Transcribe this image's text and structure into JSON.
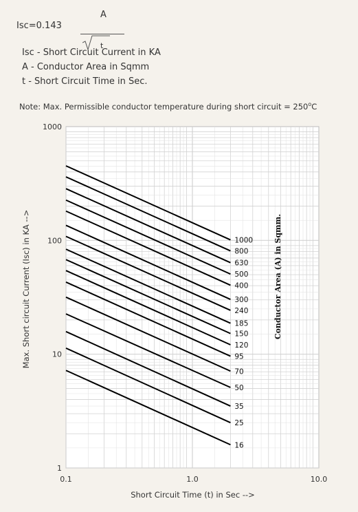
{
  "formula": {
    "lhs": "Isc=0.143",
    "numerator": "A",
    "denominator": "t"
  },
  "definitions": [
    "Isc - Short Circuit Current in KA",
    "A - Conductor Area in Sqmm",
    "t - Short Circuit Time in Sec."
  ],
  "note": {
    "text": "Note: Max. Permissible conductor temperature during short circuit = 250",
    "superscript": "o",
    "suffix": "C"
  },
  "colors": {
    "background": "#f5f2ec",
    "plot_area": "#ffffff",
    "grid": "#d2d2d2",
    "lines": "#000000"
  },
  "chart_data": {
    "type": "line",
    "x_scale": "log",
    "y_scale": "log",
    "xlim": [
      0.1,
      10
    ],
    "ylim": [
      1,
      1000
    ],
    "x_ticks": [
      "0.1",
      "1.0",
      "10.0"
    ],
    "y_ticks": [
      "1",
      "10",
      "100",
      "1000"
    ],
    "xlabel": "Short Circuit Time (t) in Sec -->",
    "ylabel": "Max. Short circuit Current (Isc) in KA -->",
    "legend_title": "Conductor Area (A) in Sqmm.",
    "grid": true,
    "constant": 0.143,
    "x_range": [
      0.1,
      2
    ],
    "series": [
      {
        "name": "1000",
        "x": [
          0.1,
          2
        ],
        "y": [
          452.2,
          101.1
        ]
      },
      {
        "name": "800",
        "x": [
          0.1,
          2
        ],
        "y": [
          361.8,
          80.9
        ]
      },
      {
        "name": "630",
        "x": [
          0.1,
          2
        ],
        "y": [
          284.9,
          63.7
        ]
      },
      {
        "name": "500",
        "x": [
          0.1,
          2
        ],
        "y": [
          226.1,
          50.6
        ]
      },
      {
        "name": "400",
        "x": [
          0.1,
          2
        ],
        "y": [
          180.9,
          40.4
        ]
      },
      {
        "name": "300",
        "x": [
          0.1,
          2
        ],
        "y": [
          135.7,
          30.3
        ]
      },
      {
        "name": "240",
        "x": [
          0.1,
          2
        ],
        "y": [
          108.5,
          24.3
        ]
      },
      {
        "name": "185",
        "x": [
          0.1,
          2
        ],
        "y": [
          83.7,
          18.7
        ]
      },
      {
        "name": "150",
        "x": [
          0.1,
          2
        ],
        "y": [
          67.8,
          15.2
        ]
      },
      {
        "name": "120",
        "x": [
          0.1,
          2
        ],
        "y": [
          54.3,
          12.1
        ]
      },
      {
        "name": "95",
        "x": [
          0.1,
          2
        ],
        "y": [
          43.0,
          9.6
        ]
      },
      {
        "name": "70",
        "x": [
          0.1,
          2
        ],
        "y": [
          31.7,
          7.1
        ]
      },
      {
        "name": "50",
        "x": [
          0.1,
          2
        ],
        "y": [
          22.6,
          5.1
        ]
      },
      {
        "name": "35",
        "x": [
          0.1,
          2
        ],
        "y": [
          15.8,
          3.5
        ]
      },
      {
        "name": "25",
        "x": [
          0.1,
          2
        ],
        "y": [
          11.3,
          2.5
        ]
      },
      {
        "name": "16",
        "x": [
          0.1,
          2
        ],
        "y": [
          7.2,
          1.6
        ]
      }
    ]
  }
}
